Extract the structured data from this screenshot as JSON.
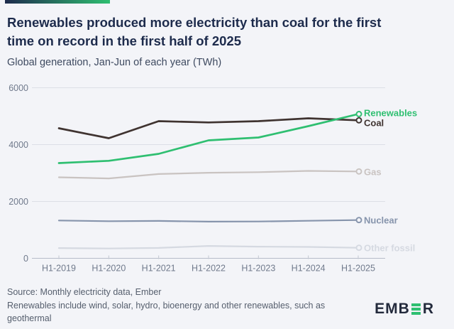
{
  "page": {
    "background": "#f3f4f8"
  },
  "header": {
    "title": "Renewables produced more electricity than coal for the first time on record in the first half of 2025",
    "title_line1": "Renewables produced more electricity than coal for the first",
    "title_line2": "time on record in the first half of 2025",
    "subtitle": "Global generation, Jan-Jun of each year (TWh)"
  },
  "chart_data": {
    "type": "line",
    "title": "Renewables produced more electricity than coal for the first time on record in the first half of 2025",
    "subtitle": "Global generation, Jan-Jun of each year (TWh)",
    "unit": "TWh",
    "categories": [
      "H1-2019",
      "H1-2020",
      "H1-2021",
      "H1-2022",
      "H1-2023",
      "H1-2024",
      "H1-2025"
    ],
    "series": [
      {
        "name": "Renewables",
        "color": "#2fbf71",
        "values": [
          3350,
          3430,
          3675,
          4150,
          4250,
          4650,
          5075
        ]
      },
      {
        "name": "Coal",
        "color": "#3f3330",
        "values": [
          4575,
          4225,
          4825,
          4780,
          4825,
          4925,
          4855
        ]
      },
      {
        "name": "Gas",
        "color": "#c9c3c1",
        "values": [
          2850,
          2810,
          2965,
          3010,
          3030,
          3075,
          3055
        ]
      },
      {
        "name": "Nuclear",
        "color": "#8694ac",
        "values": [
          1330,
          1305,
          1315,
          1290,
          1295,
          1320,
          1345
        ]
      },
      {
        "name": "Other fossil",
        "color": "#d5d9e1",
        "values": [
          360,
          345,
          365,
          435,
          410,
          400,
          370
        ]
      }
    ],
    "ylim": [
      0,
      6000
    ],
    "yticks": [
      0,
      2000,
      4000,
      6000
    ],
    "grid": true,
    "legend_position": "line-end-labels"
  },
  "footer": {
    "source": "Source: Monthly electricity data, Ember",
    "note": "Renewables include wind, solar, hydro, bioenergy and other renewables, such as geothermal",
    "note_line1": "Renewables include wind, solar, hydro, bioenergy and other renewables, such as",
    "note_line2": "geothermal"
  },
  "logo": {
    "name": "EMBER",
    "left": "EMB",
    "right": "R",
    "bar_color": "#2fbf71"
  }
}
